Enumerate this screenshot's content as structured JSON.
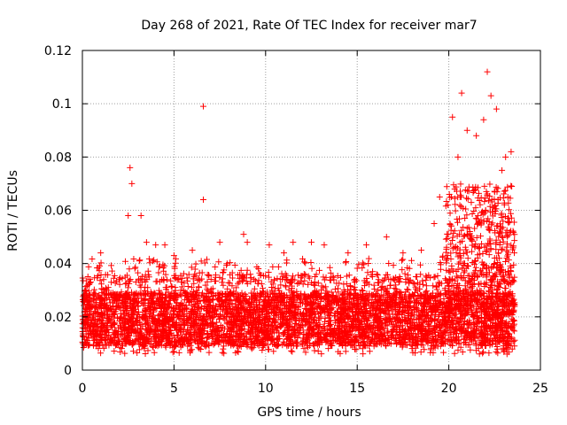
{
  "chart_data": {
    "type": "scatter",
    "title": "Day 268 of 2021, Rate Of TEC Index for receiver mar7",
    "xlabel": "GPS time / hours",
    "ylabel": "ROTI / TECUs",
    "xlim": [
      0,
      25
    ],
    "ylim": [
      0,
      0.12
    ],
    "xticks": [
      "0",
      "5",
      "10",
      "15",
      "20",
      "25"
    ],
    "yticks": [
      "0",
      "0.02",
      "0.04",
      "0.06",
      "0.08",
      "0.1",
      "0.12"
    ],
    "grid": true,
    "marker": "plus",
    "series": [
      {
        "name": "ROTI",
        "color": "#ff0000",
        "x": [
          0.2,
          1.0,
          2.5,
          2.6,
          2.7,
          3.2,
          3.5,
          4.0,
          4.5,
          5.0,
          6.0,
          6.6,
          6.6,
          7.5,
          8.8,
          9.0,
          10.2,
          11.0,
          11.5,
          12.5,
          13.2,
          14.5,
          15.5,
          16.6,
          17.5,
          18.5,
          19.2,
          19.5,
          20.2,
          20.5,
          20.7,
          21.0,
          21.5,
          21.9,
          22.1,
          22.3,
          22.6,
          22.9,
          23.1,
          23.4
        ],
        "y": [
          0.03,
          0.044,
          0.058,
          0.076,
          0.07,
          0.058,
          0.048,
          0.047,
          0.047,
          0.043,
          0.045,
          0.099,
          0.064,
          0.048,
          0.051,
          0.048,
          0.047,
          0.044,
          0.048,
          0.048,
          0.047,
          0.044,
          0.047,
          0.05,
          0.044,
          0.045,
          0.055,
          0.065,
          0.095,
          0.08,
          0.104,
          0.09,
          0.088,
          0.094,
          0.112,
          0.103,
          0.098,
          0.075,
          0.08,
          0.082
        ]
      }
    ]
  }
}
